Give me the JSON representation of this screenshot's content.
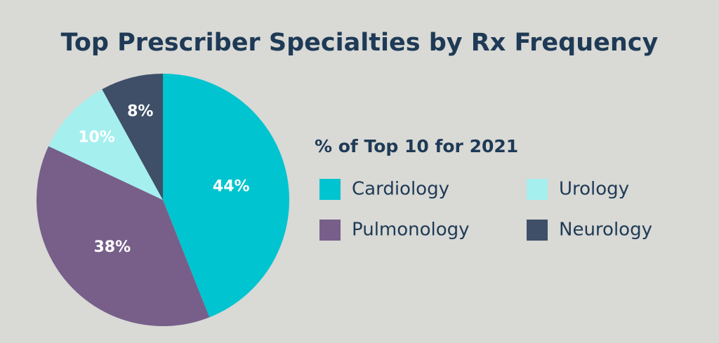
{
  "chart_data": {
    "type": "pie",
    "title": "Top Prescriber Specialties by Rx Frequency",
    "legend_title": "% of Top 10 for 2021",
    "categories": [
      "Cardiology",
      "Pulmonology",
      "Urology",
      "Neurology"
    ],
    "values": [
      44,
      38,
      10,
      8
    ],
    "value_labels": [
      "44%",
      "38%",
      "10%",
      "8%"
    ],
    "colors": [
      "#00c4cf",
      "#775f8a",
      "#a5efef",
      "#3e4f67"
    ]
  }
}
